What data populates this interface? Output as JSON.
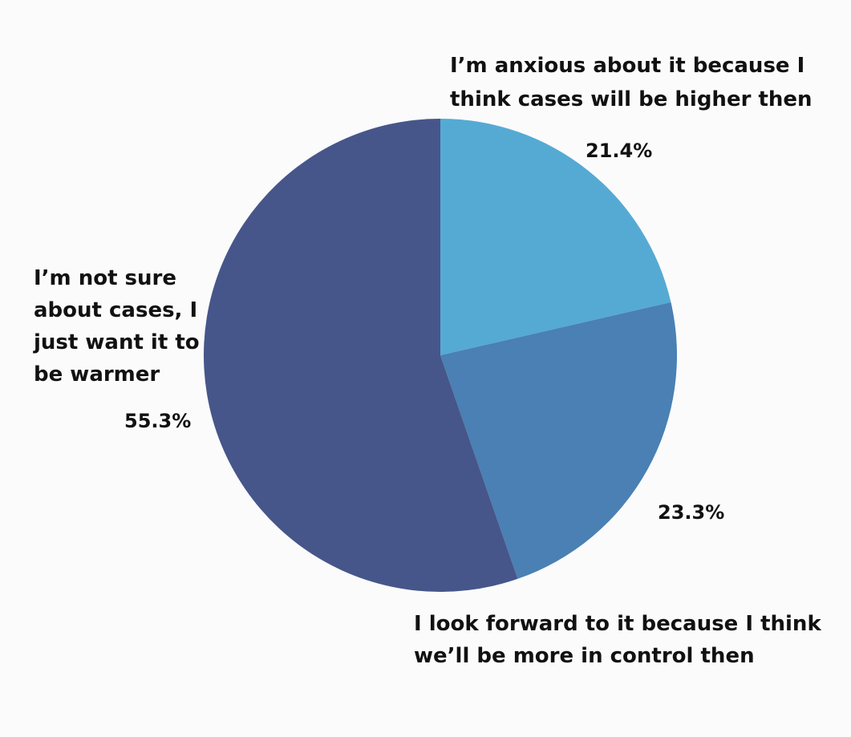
{
  "chart_data": {
    "type": "pie",
    "title": "",
    "slices": [
      {
        "label_lines": [
          "I’m anxious about it because I",
          "think cases will be higher then"
        ],
        "value": 21.4,
        "value_label": "21.4%",
        "color": "#55aad3"
      },
      {
        "label_lines": [
          "I look forward to it because I think",
          "we’ll be more in control then"
        ],
        "value": 23.3,
        "value_label": "23.3%",
        "color": "#4a80b3"
      },
      {
        "label_lines": [
          "I’m not sure",
          "about cases, I",
          "just want it to",
          "be warmer"
        ],
        "value": 55.3,
        "value_label": "55.3%",
        "color": "#46568a"
      }
    ],
    "start_angle_deg": 0,
    "direction": "clockwise",
    "legend": "none"
  }
}
